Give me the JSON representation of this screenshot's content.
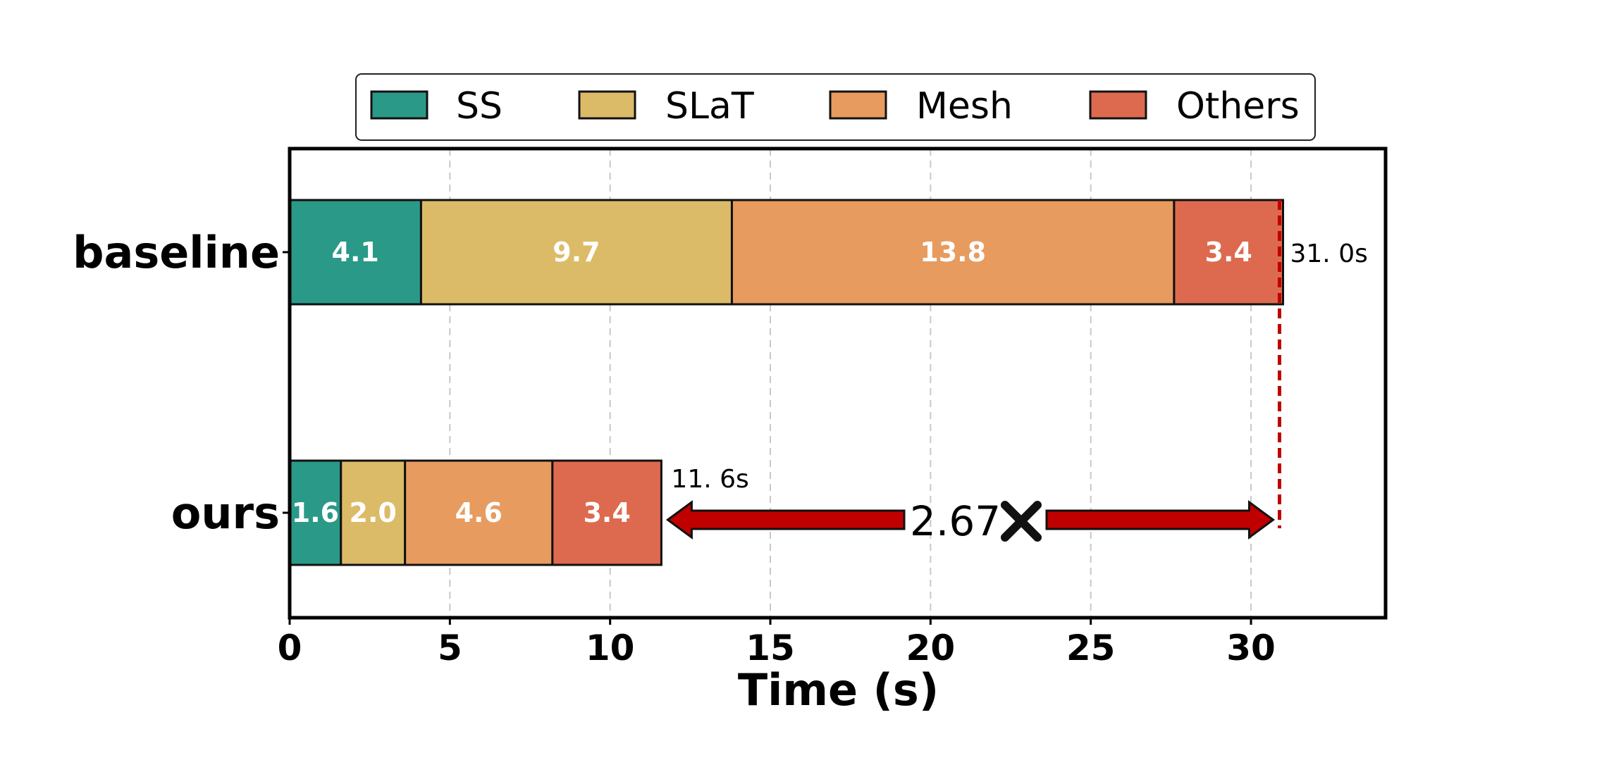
{
  "chart_data": {
    "type": "bar",
    "orientation": "horizontal",
    "stacked": true,
    "categories": [
      "baseline",
      "ours"
    ],
    "series": [
      {
        "name": "SS",
        "color": "#2a9988",
        "values": [
          4.1,
          1.6
        ],
        "labels": [
          "4.1",
          "1.6"
        ]
      },
      {
        "name": "SLaT",
        "color": "#dcbb68",
        "values": [
          9.7,
          2.0
        ],
        "labels": [
          "9.7",
          "2.0"
        ]
      },
      {
        "name": "Mesh",
        "color": "#e79b5f",
        "values": [
          13.8,
          4.6
        ],
        "labels": [
          "13.8",
          "4.6"
        ]
      },
      {
        "name": "Others",
        "color": "#dd6a4f",
        "values": [
          3.4,
          3.4
        ],
        "labels": [
          "3.4",
          "3.4"
        ]
      }
    ],
    "totals": [
      31.0,
      11.6
    ],
    "total_labels": [
      "31. 0s",
      "11. 6s"
    ],
    "speedup_label": "2.67",
    "speedup_icon": "multiply-x-icon",
    "xlabel": "Time (s)",
    "ylabel": "",
    "xlim": [
      0,
      34.2
    ],
    "xticks": [
      0,
      5,
      10,
      15,
      20,
      25,
      30
    ],
    "xtick_labels": [
      "0",
      "5",
      "10",
      "15",
      "20",
      "25",
      "30"
    ],
    "grid": "x-dashed",
    "legend_position": "top-center",
    "reference_line_color": "#c00000",
    "arrow_color": "#c00000"
  }
}
